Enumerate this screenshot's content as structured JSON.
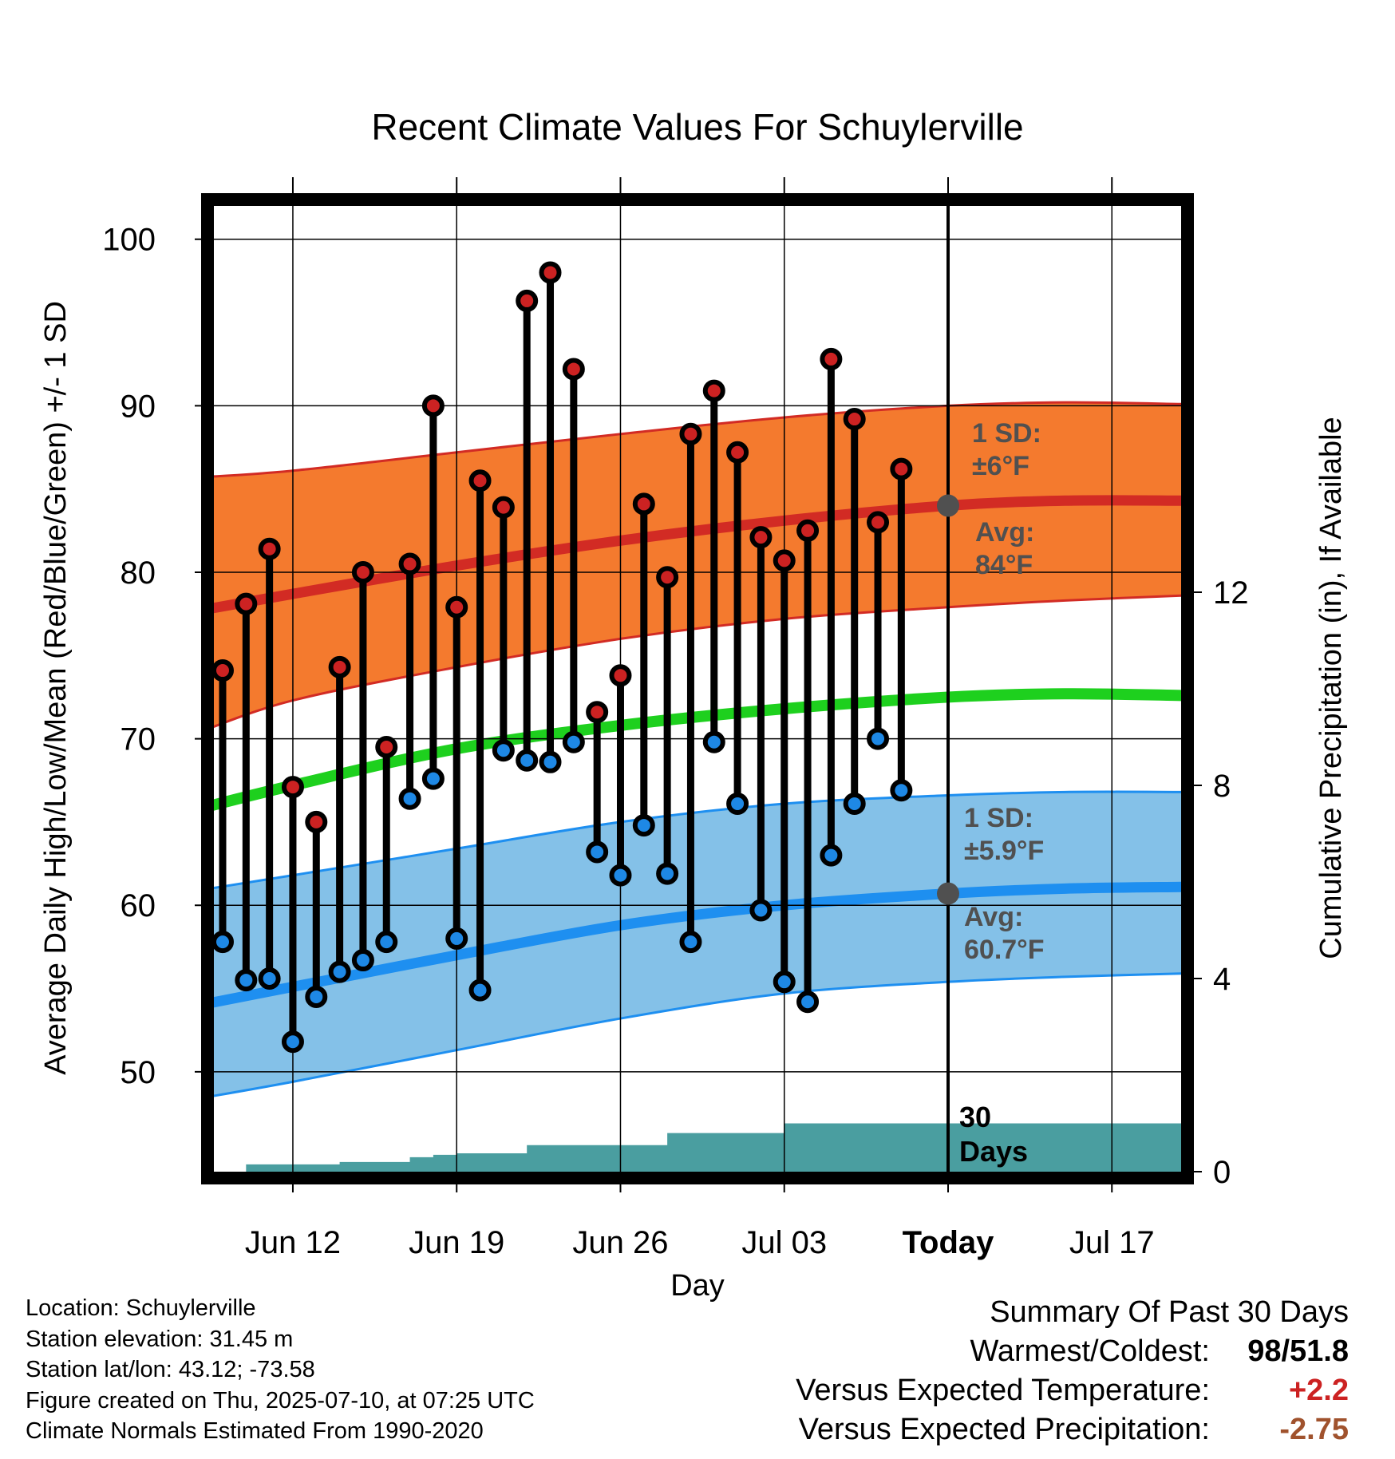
{
  "chart_data": {
    "type": "line",
    "title": "Recent Climate Values For Schuylerville",
    "xlabel": "Day",
    "ylabel": "Average Daily High/Low/Mean (Red/Blue/Green) +/- 1 SD",
    "y2label": "Cumulative Precipitation (in), If Available",
    "ylim": [
      44,
      102
    ],
    "y2lim": [
      0,
      20
    ],
    "yticks": [
      "50",
      "60",
      "70",
      "80",
      "90",
      "100"
    ],
    "y2ticks": [
      "0",
      "4",
      "8",
      "12"
    ],
    "xticks": [
      "Jun 12",
      "Jun 19",
      "Jun 26",
      "Jul 03",
      "Today",
      "Jul 17"
    ],
    "x_range_days": [
      "2025-06-08 15:00",
      "2025-07-19 23:00"
    ],
    "today": "2025-07-10",
    "grid": true,
    "normals": {
      "dates": [
        "2025-06-08",
        "2025-06-12",
        "2025-06-19",
        "2025-06-26",
        "2025-07-03",
        "2025-07-10",
        "2025-07-15",
        "2025-07-20"
      ],
      "high_avg": [
        77.7,
        78.7,
        80.4,
        81.9,
        83.1,
        84.0,
        84.3,
        84.3
      ],
      "high_upper": [
        85.7,
        86.1,
        87.2,
        88.3,
        89.3,
        90.0,
        90.2,
        90.1
      ],
      "high_lower": [
        70.4,
        72.3,
        74.3,
        76.0,
        77.2,
        77.9,
        78.3,
        78.6
      ],
      "mean_avg": [
        65.8,
        67.2,
        69.4,
        70.8,
        71.8,
        72.5,
        72.7,
        72.6
      ],
      "low_avg": [
        54.0,
        55.1,
        57.0,
        58.8,
        60.0,
        60.7,
        61.0,
        61.1
      ],
      "low_upper": [
        60.9,
        61.8,
        63.4,
        65.0,
        66.1,
        66.6,
        66.8,
        66.8
      ],
      "low_lower": [
        48.4,
        49.4,
        51.3,
        53.2,
        54.7,
        55.4,
        55.7,
        55.9
      ]
    },
    "annotations": {
      "high_sd": {
        "line1": "1 SD:",
        "line2": "±6°F"
      },
      "high_avg": {
        "line1": "Avg:",
        "line2": "84°F"
      },
      "low_sd": {
        "line1": "1 SD:",
        "line2": "±5.9°F"
      },
      "low_avg": {
        "line1": "Avg:",
        "line2": "60.7°F"
      },
      "window": {
        "line1": "30",
        "line2": "Days"
      }
    },
    "series": [
      {
        "name": "High",
        "dates": [
          "2025-06-09",
          "2025-06-10",
          "2025-06-11",
          "2025-06-12",
          "2025-06-13",
          "2025-06-14",
          "2025-06-15",
          "2025-06-16",
          "2025-06-17",
          "2025-06-18",
          "2025-06-19",
          "2025-06-20",
          "2025-06-21",
          "2025-06-22",
          "2025-06-23",
          "2025-06-24",
          "2025-06-25",
          "2025-06-26",
          "2025-06-27",
          "2025-06-28",
          "2025-06-29",
          "2025-06-30",
          "2025-07-01",
          "2025-07-02",
          "2025-07-03",
          "2025-07-04",
          "2025-07-05",
          "2025-07-06",
          "2025-07-07",
          "2025-07-08",
          "2025-07-09"
        ],
        "values": [
          74.1,
          78.1,
          81.4,
          67.1,
          65.0,
          74.3,
          80.0,
          69.5,
          80.5,
          90.0,
          77.9,
          85.5,
          83.9,
          96.3,
          98.0,
          92.2,
          71.6,
          73.8,
          84.1,
          79.7,
          88.3,
          90.9,
          87.2,
          82.1,
          80.7,
          82.5,
          92.8,
          89.2,
          83.0,
          86.2,
          null
        ]
      },
      {
        "name": "Low",
        "dates": [
          "2025-06-09",
          "2025-06-10",
          "2025-06-11",
          "2025-06-12",
          "2025-06-13",
          "2025-06-14",
          "2025-06-15",
          "2025-06-16",
          "2025-06-17",
          "2025-06-18",
          "2025-06-19",
          "2025-06-20",
          "2025-06-21",
          "2025-06-22",
          "2025-06-23",
          "2025-06-24",
          "2025-06-25",
          "2025-06-26",
          "2025-06-27",
          "2025-06-28",
          "2025-06-29",
          "2025-06-30",
          "2025-07-01",
          "2025-07-02",
          "2025-07-03",
          "2025-07-04",
          "2025-07-05",
          "2025-07-06",
          "2025-07-07",
          "2025-07-08",
          "2025-07-09"
        ],
        "values": [
          57.8,
          55.5,
          55.6,
          51.8,
          54.5,
          56.0,
          56.7,
          57.8,
          66.4,
          67.6,
          58.0,
          54.9,
          69.3,
          68.7,
          68.6,
          69.8,
          63.2,
          61.8,
          64.8,
          61.9,
          57.8,
          69.8,
          66.1,
          59.7,
          55.4,
          54.2,
          63.0,
          66.1,
          70.0,
          66.9,
          null
        ]
      },
      {
        "name": "Cumulative Precipitation",
        "dates": [
          "2025-06-09",
          "2025-06-10",
          "2025-06-11",
          "2025-06-12",
          "2025-06-13",
          "2025-06-14",
          "2025-06-15",
          "2025-06-16",
          "2025-06-17",
          "2025-06-18",
          "2025-06-19",
          "2025-06-20",
          "2025-06-21",
          "2025-06-22",
          "2025-06-23",
          "2025-06-24",
          "2025-06-25",
          "2025-06-26",
          "2025-06-27",
          "2025-06-28",
          "2025-06-29",
          "2025-06-30",
          "2025-07-01",
          "2025-07-02",
          "2025-07-03",
          "2025-07-04",
          "2025-07-05",
          "2025-07-06",
          "2025-07-07",
          "2025-07-08",
          "2025-07-09",
          "2025-07-10",
          "2025-07-20"
        ],
        "values": [
          0.0,
          0.15,
          0.15,
          0.15,
          0.15,
          0.2,
          0.2,
          0.2,
          0.3,
          0.35,
          0.38,
          0.38,
          0.38,
          0.55,
          0.55,
          0.55,
          0.55,
          0.55,
          0.55,
          0.8,
          0.8,
          0.8,
          0.8,
          0.8,
          1.0,
          1.0,
          1.0,
          1.0,
          1.0,
          1.0,
          1.0,
          1.0,
          1.0
        ]
      }
    ]
  },
  "footer": {
    "location": "Location: Schuylerville",
    "elevation": "Station elevation: 31.45 m",
    "latlon": "Station lat/lon: 43.12; -73.58",
    "created": "Figure created on Thu, 2025-07-10, at 07:25 UTC",
    "normals": "Climate Normals Estimated From 1990-2020"
  },
  "summary": {
    "title": "Summary Of Past 30 Days",
    "warm_cold_label": "Warmest/Coldest:",
    "warmest": "98",
    "slash": "/",
    "coldest": "51.8",
    "temp_label": "Versus Expected Temperature:",
    "temp_value": "+2.2",
    "precip_label": "Versus Expected Precipitation:",
    "precip_value": "-2.75",
    "colors": {
      "warm": "#cc2222",
      "cold": "#1e88e5",
      "temp": "#cc2222",
      "precip": "#a0522d"
    }
  },
  "colors": {
    "high_band": "#f47a2e",
    "high_line": "#d22b24",
    "mean_line": "#1ed01e",
    "low_band": "#84c1e8",
    "low_line": "#1e8ff0",
    "precip": "#4a9ea0",
    "high_marker": "#cc2222",
    "low_marker": "#1e88e5",
    "annotation": "#505050"
  }
}
